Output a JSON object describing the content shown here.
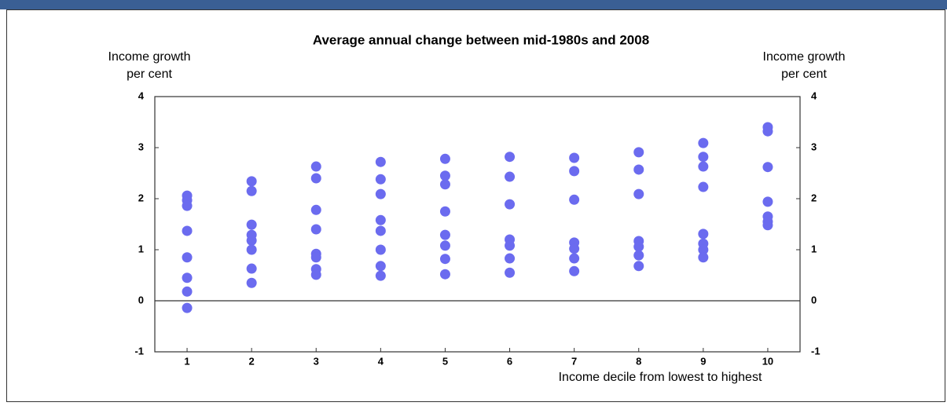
{
  "chart_data": {
    "type": "scatter",
    "title": "Average annual change between mid-1980s and 2008",
    "y_label": [
      "Income growth",
      "per cent"
    ],
    "y2_label": [
      "Income growth",
      "per cent"
    ],
    "x_label": "Income decile from lowest to highest",
    "color": "#6b6bef",
    "x": [
      1,
      1,
      1,
      1,
      1,
      1,
      1,
      1,
      2,
      2,
      2,
      2,
      2,
      2,
      2,
      2,
      3,
      3,
      3,
      3,
      3,
      3,
      3,
      3,
      4,
      4,
      4,
      4,
      4,
      4,
      4,
      4,
      5,
      5,
      5,
      5,
      5,
      5,
      5,
      5,
      6,
      6,
      6,
      6,
      6,
      6,
      6,
      7,
      7,
      7,
      7,
      7,
      7,
      7,
      8,
      8,
      8,
      8,
      8,
      8,
      8,
      9,
      9,
      9,
      9,
      9,
      9,
      9,
      9,
      10,
      10,
      10,
      10,
      10,
      10,
      10
    ],
    "values": [
      2.06,
      1.97,
      1.86,
      1.37,
      0.85,
      0.45,
      0.18,
      -0.14,
      2.34,
      2.15,
      1.49,
      1.29,
      1.18,
      1.0,
      0.63,
      0.35,
      2.63,
      2.4,
      1.78,
      1.4,
      0.92,
      0.85,
      0.62,
      0.51,
      2.72,
      2.38,
      2.09,
      1.58,
      1.37,
      1.0,
      0.68,
      0.49,
      2.78,
      2.45,
      2.28,
      1.75,
      1.29,
      1.08,
      0.82,
      0.52,
      2.82,
      2.43,
      1.89,
      1.2,
      1.08,
      0.83,
      0.55,
      2.8,
      2.54,
      1.98,
      1.14,
      1.02,
      0.83,
      0.58,
      2.91,
      2.57,
      2.09,
      1.17,
      1.06,
      0.89,
      0.68,
      3.09,
      2.82,
      2.63,
      2.23,
      1.31,
      1.12,
      1.0,
      0.85,
      3.4,
      3.32,
      2.62,
      1.94,
      1.65,
      1.55,
      1.48
    ],
    "xlim": [
      0.5,
      10.5
    ],
    "xticks": [
      1,
      2,
      3,
      4,
      5,
      6,
      7,
      8,
      9,
      10
    ],
    "ylim": [
      -1,
      4
    ],
    "yticks": [
      -1,
      0,
      1,
      2,
      3,
      4
    ],
    "y2lim": [
      -1,
      4
    ],
    "y2ticks": [
      -1,
      0,
      1,
      2,
      3,
      4
    ],
    "zero_line": true
  }
}
